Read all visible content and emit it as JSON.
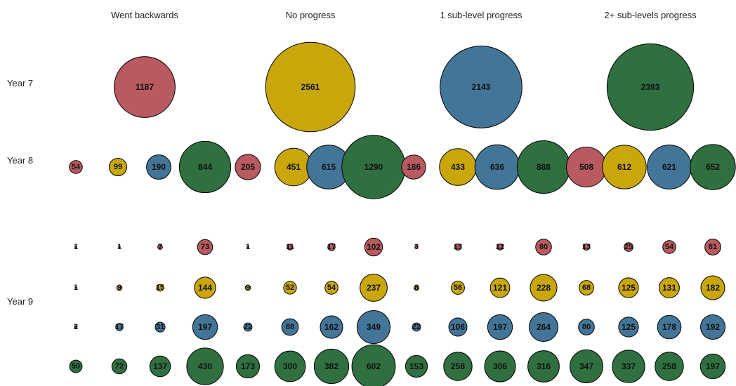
{
  "chart_data": {
    "type": "bubble",
    "colors": {
      "Went backwards": "#b85a60",
      "No progress": "#c9a70b",
      "1 sub-level progress": "#427597",
      "2+ sub-levels progress": "#2f6f40"
    },
    "column_titles": [
      "Went backwards",
      "No progress",
      "1 sub-level progress",
      "2+ sub-levels progress"
    ],
    "row_labels": [
      "Year 7",
      "Year 8",
      "Year 9"
    ],
    "year7": [
      {
        "category": "Went backwards",
        "value": 1187
      },
      {
        "category": "No progress",
        "value": 2561
      },
      {
        "category": "1 sub-level progress",
        "value": 2143
      },
      {
        "category": "2+ sub-levels progress",
        "value": 2393
      }
    ],
    "year8": [
      {
        "year7_category": "Went backwards",
        "values": [
          54,
          99,
          190,
          844
        ]
      },
      {
        "year7_category": "No progress",
        "values": [
          205,
          451,
          615,
          1290
        ]
      },
      {
        "year7_category": "1 sub-level progress",
        "values": [
          186,
          433,
          636,
          888
        ]
      },
      {
        "year7_category": "2+ sub-levels progress",
        "values": [
          508,
          612,
          621,
          652
        ]
      }
    ],
    "year9": {
      "Went backwards": [
        1,
        1,
        7,
        73,
        1,
        11,
        17,
        102,
        3,
        13,
        12,
        80,
        13,
        25,
        54,
        81
      ],
      "No progress": [
        1,
        9,
        15,
        144,
        9,
        52,
        54,
        237,
        8,
        56,
        121,
        228,
        68,
        125,
        131,
        182
      ],
      "1 sub-level progress": [
        2,
        17,
        31,
        197,
        22,
        88,
        162,
        349,
        22,
        106,
        197,
        264,
        80,
        125,
        178,
        192
      ],
      "2+ sub-levels progress": [
        50,
        72,
        137,
        430,
        173,
        300,
        382,
        602,
        153,
        258,
        306,
        316,
        347,
        337,
        258,
        197
      ]
    }
  }
}
